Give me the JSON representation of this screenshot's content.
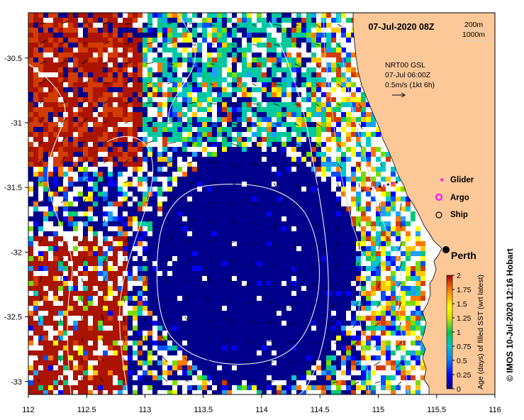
{
  "map": {
    "date_label": "07-Jul-2020 08Z",
    "depth_contours": [
      "200m",
      "1000m"
    ],
    "velocity_note": {
      "product": "NRT00 GSL",
      "time": "07-Jul 06:00Z",
      "scale": "0.5m/s (1kt 6h)"
    },
    "city": "Perth",
    "legend": {
      "glider": "Glider",
      "argo": "Argo",
      "ship": "Ship"
    },
    "x_axis": {
      "range": [
        112,
        116
      ],
      "ticks": [
        "112",
        "112.5",
        "113",
        "113.5",
        "114",
        "114.5",
        "115",
        "115.5",
        "116"
      ]
    },
    "y_axis": {
      "range": [
        -33.1,
        -30.15
      ],
      "ticks": [
        "-30.5",
        "-31",
        "-31.5",
        "-32",
        "-32.5",
        "-33"
      ]
    },
    "colorbar": {
      "title": "Age (days) of filled SST (wrt latest)",
      "range": [
        0,
        2
      ],
      "ticks": [
        "2",
        "1.75",
        "1.5",
        "1.25",
        "1",
        "0.75",
        "0.5",
        "0.25",
        "0"
      ]
    },
    "credit": "© IMOS 10-Jul-2020 12:16 Hobart",
    "colors": {
      "land": "#fcc898",
      "age_0": "#00008c",
      "age_mid": "#00c8a0",
      "age_max": "#aa1400",
      "no_data": "#ffffff"
    }
  }
}
